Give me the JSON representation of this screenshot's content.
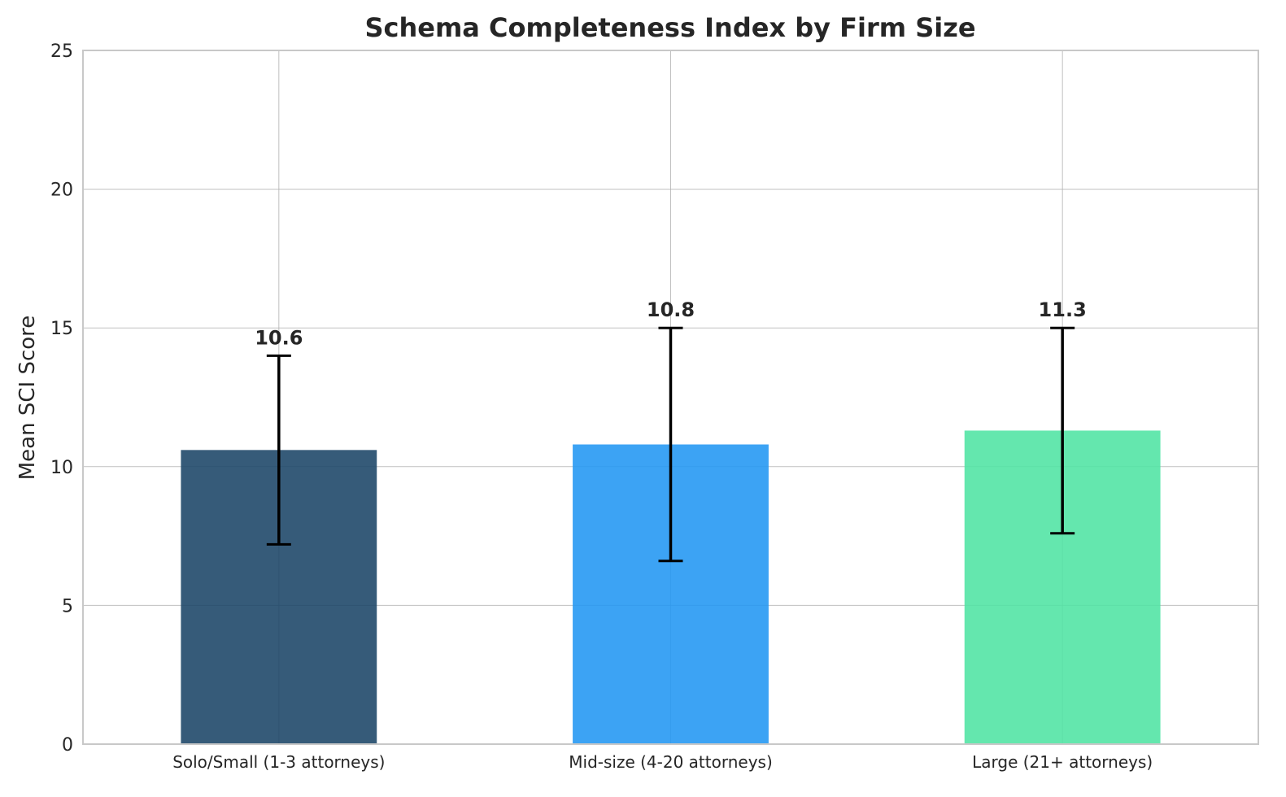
{
  "chart_data": {
    "type": "bar",
    "title": "Schema Completeness Index by Firm Size",
    "xlabel": "",
    "ylabel": "Mean SCI Score",
    "ylim": [
      0,
      25
    ],
    "yticks": [
      0,
      5,
      10,
      15,
      20,
      25
    ],
    "categories": [
      "Solo/Small (1-3 attorneys)",
      "Mid-size (4-20 attorneys)",
      "Large (21+ attorneys)"
    ],
    "values": [
      10.6,
      10.8,
      11.3
    ],
    "value_labels": [
      "10.6",
      "10.8",
      "11.3"
    ],
    "error_bars": [
      {
        "low": 7.2,
        "high": 14.0
      },
      {
        "low": 6.6,
        "high": 15.0
      },
      {
        "low": 7.6,
        "high": 15.0
      }
    ],
    "colors": [
      "#1a4466",
      "#2196f3",
      "#4ee4a3"
    ],
    "grid": true,
    "legend": "none"
  }
}
